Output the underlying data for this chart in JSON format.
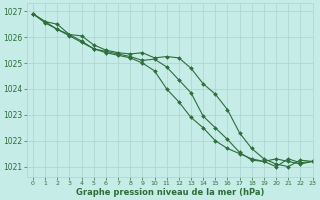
{
  "title": "Graphe pression niveau de la mer (hPa)",
  "background_color": "#c6ece8",
  "grid_color": "#aad4d0",
  "line_color": "#2d6e3a",
  "xlim": [
    -0.5,
    23
  ],
  "ylim": [
    1020.6,
    1027.3
  ],
  "yticks": [
    1021,
    1022,
    1023,
    1024,
    1025,
    1026,
    1027
  ],
  "xticks": [
    0,
    1,
    2,
    3,
    4,
    5,
    6,
    7,
    8,
    9,
    10,
    11,
    12,
    13,
    14,
    15,
    16,
    17,
    18,
    19,
    20,
    21,
    22,
    23
  ],
  "series": [
    [
      1026.9,
      1026.6,
      1026.5,
      1026.1,
      1026.05,
      1025.7,
      1025.5,
      1025.4,
      1025.35,
      1025.4,
      1025.2,
      1025.25,
      1025.2,
      1024.8,
      1024.2,
      1023.8,
      1023.2,
      1022.3,
      1021.7,
      1021.3,
      1021.1,
      1021.0,
      1021.25,
      1021.2
    ],
    [
      1026.9,
      1026.55,
      1026.3,
      1026.05,
      1025.8,
      1025.55,
      1025.4,
      1025.3,
      1025.2,
      1025.0,
      1024.7,
      1024.0,
      1023.5,
      1022.9,
      1022.5,
      1022.0,
      1021.7,
      1021.5,
      1021.3,
      1021.2,
      1021.0,
      1021.3,
      1021.15,
      1021.2
    ],
    [
      1026.9,
      1026.6,
      1026.3,
      1026.1,
      1025.85,
      1025.55,
      1025.45,
      1025.35,
      1025.25,
      1025.1,
      1025.15,
      1024.85,
      1024.35,
      1023.85,
      1022.95,
      1022.5,
      1022.05,
      1021.55,
      1021.25,
      1021.2,
      1021.3,
      1021.2,
      1021.1,
      1021.2
    ]
  ],
  "xlabel_fontsize": 6.0,
  "ylabel_fontsize": 5.5,
  "xtick_fontsize": 4.5,
  "ytick_fontsize": 5.5,
  "linewidth": 0.8,
  "markersize": 2.0
}
